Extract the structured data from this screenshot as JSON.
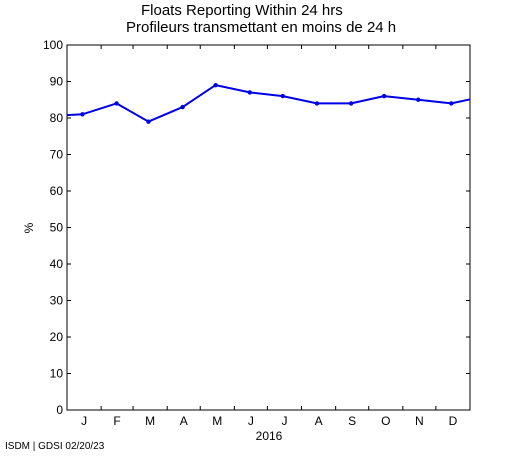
{
  "chart_data": {
    "type": "line",
    "title": "Floats Reporting Within 24 hrs",
    "subtitle": "Profileurs transmettant en moins de 24 h",
    "xlabel": "2016",
    "ylabel": "%",
    "ylim": [
      0,
      100
    ],
    "yticks": [
      0,
      10,
      20,
      30,
      40,
      50,
      60,
      70,
      80,
      90,
      100
    ],
    "month_labels": [
      "J",
      "F",
      "M",
      "A",
      "M",
      "J",
      "J",
      "A",
      "S",
      "O",
      "N",
      "D"
    ],
    "grid": false,
    "series": [
      {
        "color": "#0000e6",
        "x": [
          "2015-12-15",
          "2016-01-15",
          "2016-02-15",
          "2016-03-15",
          "2016-04-15",
          "2016-05-15",
          "2016-06-15",
          "2016-07-15",
          "2016-08-15",
          "2016-09-15",
          "2016-10-15",
          "2016-11-15",
          "2016-12-15",
          "2017-01-15"
        ],
        "values": [
          80.5,
          81,
          84,
          79,
          83,
          89,
          87,
          86,
          84,
          84,
          86,
          85,
          84,
          86
        ]
      }
    ]
  },
  "footer": "ISDM | GDSI 02/20/23"
}
